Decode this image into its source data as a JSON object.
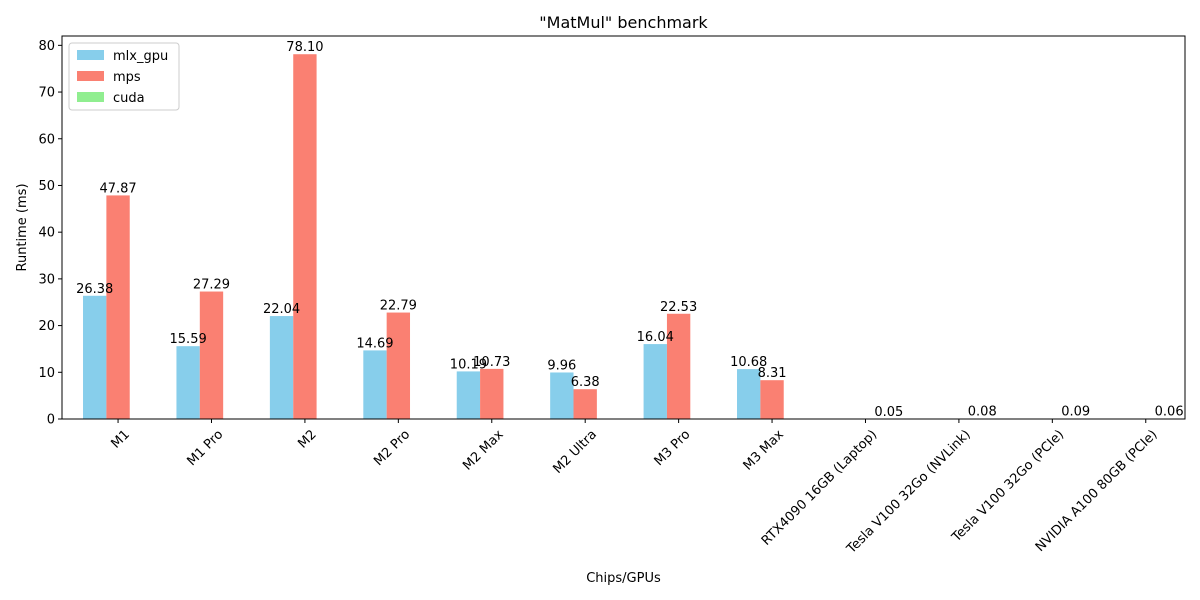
{
  "chart_data": {
    "type": "bar",
    "title": "\"MatMul\" benchmark",
    "xlabel": "Chips/GPUs",
    "ylabel": "Runtime (ms)",
    "ylim": [
      0,
      82
    ],
    "yticks": [
      0,
      10,
      20,
      30,
      40,
      50,
      60,
      70,
      80
    ],
    "grid": false,
    "legend_position": "top-left",
    "categories": [
      "M1",
      "M1 Pro",
      "M2",
      "M2 Pro",
      "M2 Max",
      "M2 Ultra",
      "M3 Pro",
      "M3 Max",
      "RTX4090 16GB (Laptop)",
      "Tesla V100 32Go (NVLink)",
      "Tesla V100 32Go (PCIe)",
      "NVIDIA A100 80GB (PCIe)"
    ],
    "series": [
      {
        "name": "mlx_gpu",
        "color": "#87CEEB",
        "values": [
          26.38,
          15.59,
          22.04,
          14.69,
          10.19,
          9.96,
          16.04,
          10.68,
          null,
          null,
          null,
          null
        ],
        "labels": [
          "26.38",
          "15.59",
          "22.04",
          "14.69",
          "10.19",
          "9.96",
          "16.04",
          "10.68",
          "",
          "",
          "",
          ""
        ]
      },
      {
        "name": "mps",
        "color": "#FA8072",
        "values": [
          47.87,
          27.29,
          78.1,
          22.79,
          10.73,
          6.38,
          22.53,
          8.31,
          null,
          null,
          null,
          null
        ],
        "labels": [
          "47.87",
          "27.29",
          "78.10",
          "22.79",
          "10.73",
          "6.38",
          "22.53",
          "8.31",
          "",
          "",
          "",
          ""
        ]
      },
      {
        "name": "cuda",
        "color": "#90EE90",
        "values": [
          null,
          null,
          null,
          null,
          null,
          null,
          null,
          null,
          0.05,
          0.08,
          0.09,
          0.06
        ],
        "labels": [
          "",
          "",
          "",
          "",
          "",
          "",
          "",
          "",
          "0.05",
          "0.08",
          "0.09",
          "0.06"
        ]
      }
    ]
  }
}
